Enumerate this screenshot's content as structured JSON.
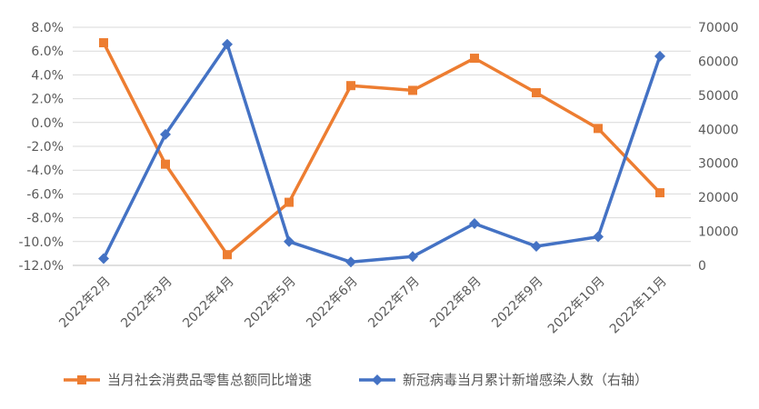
{
  "chart_data": {
    "type": "line",
    "categories": [
      "2022年2月",
      "2022年3月",
      "2022年4月",
      "2022年5月",
      "2022年6月",
      "2022年7月",
      "2022年8月",
      "2022年9月",
      "2022年10月",
      "2022年11月"
    ],
    "series": [
      {
        "name": "当月社会消费品零售总额同比增速",
        "axis": "left",
        "color": "#ED7D31",
        "marker": "square",
        "values": [
          6.7,
          -3.5,
          -11.1,
          -6.7,
          3.1,
          2.7,
          5.4,
          2.5,
          -0.5,
          -5.9
        ]
      },
      {
        "name": "新冠病毒当月累计新增感染人数（右轴）",
        "axis": "right",
        "color": "#4472C4",
        "marker": "diamond",
        "values": [
          2000,
          38500,
          65000,
          7000,
          1000,
          2600,
          12300,
          5600,
          8400,
          61500
        ]
      }
    ],
    "y_left": {
      "range": [
        -12,
        8
      ],
      "ticks": [
        8,
        6,
        4,
        2,
        0,
        -2,
        -4,
        -6,
        -8,
        -10,
        -12
      ],
      "tick_labels": [
        "8.0%",
        "6.0%",
        "4.0%",
        "2.0%",
        "0.0%",
        "-2.0%",
        "-4.0%",
        "-6.0%",
        "-8.0%",
        "-10.0%",
        "-12.0%"
      ]
    },
    "y_right": {
      "range": [
        0,
        70000
      ],
      "ticks": [
        70000,
        60000,
        50000,
        40000,
        30000,
        20000,
        10000,
        0
      ],
      "tick_labels": [
        "70000",
        "60000",
        "50000",
        "40000",
        "30000",
        "20000",
        "10000",
        "0"
      ]
    },
    "grid": true,
    "legend_position": "bottom"
  }
}
